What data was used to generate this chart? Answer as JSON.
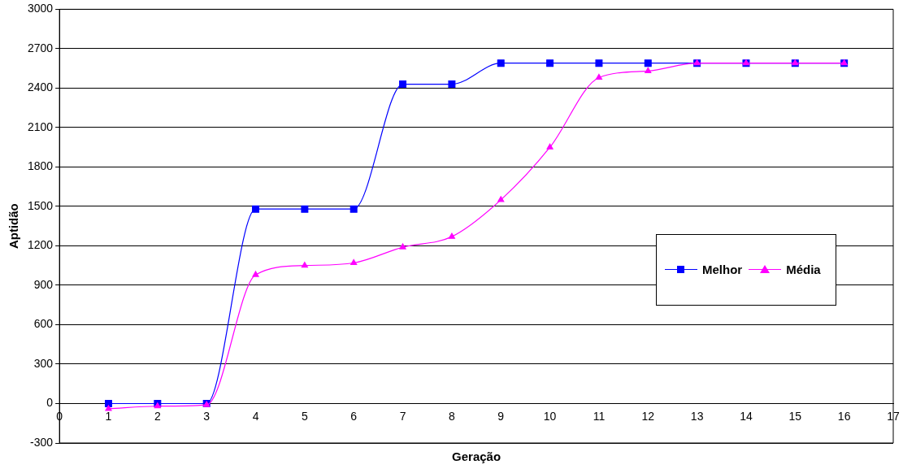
{
  "chart_data": {
    "type": "line",
    "xlabel": "Geração",
    "ylabel": "Aptidão",
    "x": [
      1,
      2,
      3,
      4,
      5,
      6,
      7,
      8,
      9,
      10,
      11,
      12,
      13,
      14,
      15,
      16
    ],
    "series": [
      {
        "name": "Melhor",
        "color": "#0000ff",
        "marker": "square",
        "values": [
          0,
          0,
          0,
          1480,
          1480,
          1480,
          2430,
          2430,
          2590,
          2590,
          2590,
          2590,
          2590,
          2590,
          2590,
          2590
        ]
      },
      {
        "name": "Média",
        "color": "#ff00ff",
        "marker": "triangle",
        "values": [
          -40,
          -20,
          -10,
          980,
          1050,
          1070,
          1190,
          1270,
          1550,
          1950,
          2480,
          2530,
          2590,
          2590,
          2590,
          2590
        ]
      }
    ],
    "xlim": [
      0,
      17
    ],
    "xticks": [
      0,
      1,
      2,
      3,
      4,
      5,
      6,
      7,
      8,
      9,
      10,
      11,
      12,
      13,
      14,
      15,
      16,
      17
    ],
    "ylim": [
      -300,
      3000
    ],
    "yticks": [
      -300,
      0,
      300,
      600,
      900,
      1200,
      1500,
      1800,
      2100,
      2400,
      2700,
      3000
    ],
    "grid": "y",
    "legend": "right",
    "line_style": "solid"
  }
}
